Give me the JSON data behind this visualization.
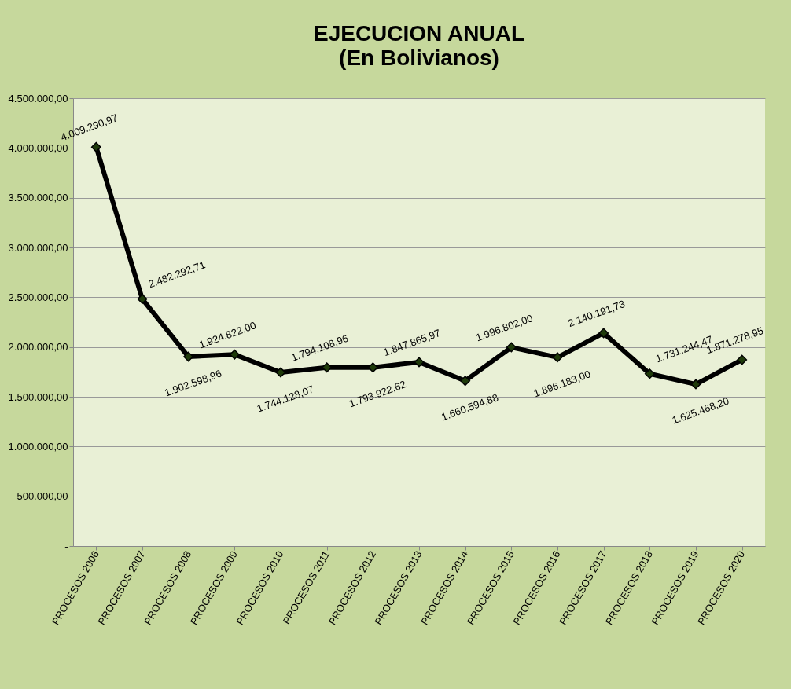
{
  "chart_data": {
    "type": "line",
    "title": "EJECUCION ANUAL",
    "subtitle": "(En Bolivianos)",
    "categories": [
      "PROCESOS 2006",
      "PROCESOS 2007",
      "PROCESOS 2008",
      "PROCESOS 2009",
      "PROCESOS 2010",
      "PROCESOS 2011",
      "PROCESOS 2012",
      "PROCESOS 2013",
      "PROCESOS 2014",
      "PROCESOS 2015",
      "PROCESOS 2016",
      "PROCESOS 2017",
      "PROCESOS 2018",
      "PROCESOS 2019",
      "PROCESOS 2020"
    ],
    "series": [
      {
        "color": "#000000",
        "values": [
          4009290.97,
          2482292.71,
          1902598.96,
          1924822.0,
          1744128.07,
          1794108.96,
          1793922.62,
          1847865.97,
          1660594.88,
          1996802.0,
          1896183.0,
          2140191.73,
          1731244.47,
          1625468.2,
          1871278.95
        ],
        "value_labels": [
          "4.009.290,97",
          "2.482.292,71",
          "1.902.598,96",
          "1.924.822,00",
          "1.744.128,07",
          "1.794.108,96",
          "1.793.922,62",
          "1.847.865,97",
          "1.660.594,88",
          "1.996.802,00",
          "1.896.183,00",
          "2.140.191,73",
          "1.731.244,47",
          "1.625.468,20",
          "1.871.278,95"
        ]
      }
    ],
    "ylim": [
      0,
      4500000
    ],
    "yticks": [
      {
        "value": 0,
        "label": "-"
      },
      {
        "value": 500000,
        "label": "500.000,00"
      },
      {
        "value": 1000000,
        "label": "1.000.000,00"
      },
      {
        "value": 1500000,
        "label": "1.500.000,00"
      },
      {
        "value": 2000000,
        "label": "2.000.000,00"
      },
      {
        "value": 2500000,
        "label": "2.500.000,00"
      },
      {
        "value": 3000000,
        "label": "3.000.000,00"
      },
      {
        "value": 3500000,
        "label": "3.500.000,00"
      },
      {
        "value": 4000000,
        "label": "4.000.000,00"
      },
      {
        "value": 4500000,
        "label": "4.500.000,00"
      }
    ],
    "grid": "y",
    "marker": "diamond",
    "line_style": "solid"
  }
}
